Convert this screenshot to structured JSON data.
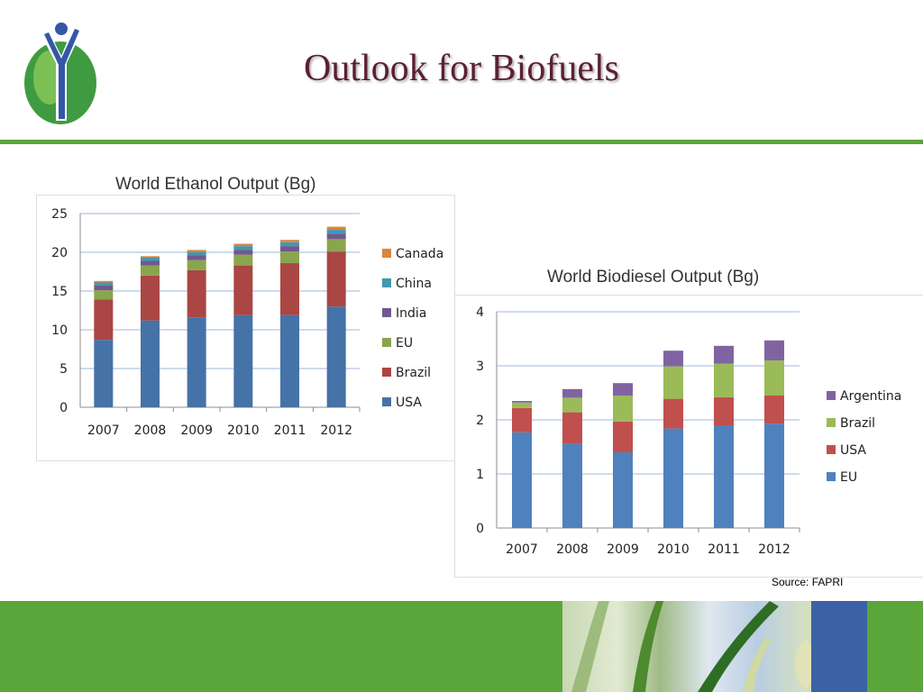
{
  "slide": {
    "title": "Outlook for Biofuels",
    "source": "Source: FAPRI"
  },
  "colors": {
    "rule": "#5aa63a",
    "title": "#5b1f36",
    "usa": "#4572a7",
    "brazil": "#aa4643",
    "eu": "#89a54e",
    "india": "#71588f",
    "china": "#4198af",
    "canada": "#db843d",
    "argentina": "#8064a2"
  },
  "chart_data": [
    {
      "type": "bar",
      "stacked": true,
      "title": "World Ethanol Output (Bg)",
      "categories": [
        "2007",
        "2008",
        "2009",
        "2010",
        "2011",
        "2012"
      ],
      "ylim": [
        0,
        25
      ],
      "yticks": [
        0,
        5,
        10,
        15,
        20,
        25
      ],
      "grid": true,
      "legend": "right",
      "series": [
        {
          "name": "USA",
          "color": "#4572a7",
          "values": [
            8.7,
            11.2,
            11.6,
            11.9,
            11.9,
            13.0
          ]
        },
        {
          "name": "Brazil",
          "color": "#aa4643",
          "values": [
            5.2,
            5.8,
            6.1,
            6.4,
            6.7,
            7.1
          ]
        },
        {
          "name": "EU",
          "color": "#89a54e",
          "values": [
            1.2,
            1.3,
            1.3,
            1.4,
            1.5,
            1.6
          ]
        },
        {
          "name": "India",
          "color": "#71588f",
          "values": [
            0.6,
            0.6,
            0.6,
            0.6,
            0.7,
            0.7
          ]
        },
        {
          "name": "China",
          "color": "#4198af",
          "values": [
            0.4,
            0.4,
            0.4,
            0.5,
            0.5,
            0.5
          ]
        },
        {
          "name": "Canada",
          "color": "#db843d",
          "values": [
            0.2,
            0.2,
            0.3,
            0.3,
            0.3,
            0.4
          ]
        }
      ]
    },
    {
      "type": "bar",
      "stacked": true,
      "title": "World Biodiesel Output (Bg)",
      "categories": [
        "2007",
        "2008",
        "2009",
        "2010",
        "2011",
        "2012"
      ],
      "ylim": [
        0,
        4
      ],
      "yticks": [
        0,
        1,
        2,
        3,
        4
      ],
      "grid": true,
      "legend": "right",
      "series": [
        {
          "name": "EU",
          "color": "#4f81bd",
          "values": [
            1.77,
            1.56,
            1.4,
            1.84,
            1.9,
            1.93
          ]
        },
        {
          "name": "USA",
          "color": "#c0504d",
          "values": [
            0.45,
            0.58,
            0.57,
            0.55,
            0.52,
            0.52
          ]
        },
        {
          "name": "Brazil",
          "color": "#9bbb59",
          "values": [
            0.1,
            0.27,
            0.48,
            0.6,
            0.62,
            0.65
          ]
        },
        {
          "name": "Argentina",
          "color": "#8064a2",
          "values": [
            0.03,
            0.16,
            0.23,
            0.29,
            0.33,
            0.37
          ]
        }
      ]
    }
  ]
}
